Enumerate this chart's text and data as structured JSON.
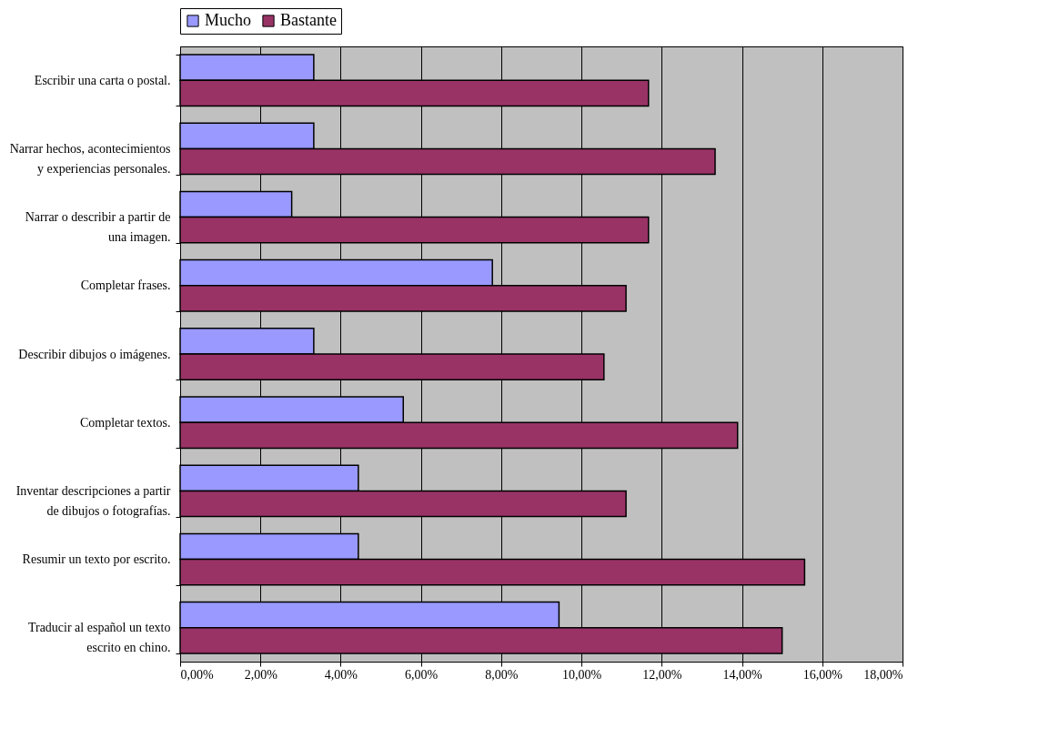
{
  "chart_data": {
    "type": "bar",
    "orientation": "horizontal",
    "categories": [
      "Escribir una carta o postal.",
      "Narrar hechos, acontecimientos y experiencias personales.",
      "Narrar o describir a partir de una imagen.",
      "Completar frases.",
      "Describir dibujos o imágenes.",
      "Completar textos.",
      "Inventar descripciones a partir de dibujos o fotografías.",
      "Resumir un texto por escrito.",
      "Traducir al español un texto escrito en chino."
    ],
    "series": [
      {
        "name": "Mucho",
        "color": "#9999ff",
        "values": [
          3.33,
          3.33,
          2.78,
          7.78,
          3.33,
          5.56,
          4.44,
          4.44,
          9.44
        ]
      },
      {
        "name": "Bastante",
        "color": "#993366",
        "values": [
          11.67,
          13.33,
          11.67,
          11.11,
          10.56,
          13.89,
          11.11,
          15.56,
          15.0
        ]
      }
    ],
    "xlim": [
      0,
      18
    ],
    "xticks": [
      {
        "value": 0,
        "label": "0,00%"
      },
      {
        "value": 2,
        "label": "2,00%"
      },
      {
        "value": 4,
        "label": "4,00%"
      },
      {
        "value": 6,
        "label": "6,00%"
      },
      {
        "value": 8,
        "label": "8,00%"
      },
      {
        "value": 10,
        "label": "10,00%"
      },
      {
        "value": 12,
        "label": "12,00%"
      },
      {
        "value": 14,
        "label": "14,00%"
      },
      {
        "value": 16,
        "label": "16,00%"
      },
      {
        "value": 18,
        "label": "18,00%"
      }
    ],
    "grid": "x",
    "legend": "top"
  }
}
